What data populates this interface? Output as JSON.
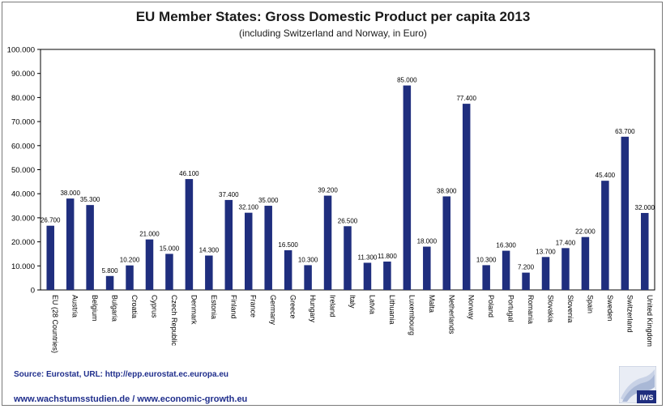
{
  "header": {
    "title": "EU Member States: Gross Domestic Product per capita 2013",
    "subtitle": "(including Switzerland and Norway, in Euro)"
  },
  "footer": {
    "source": "Source: Eurostat, URL: http://epp.eurostat.ec.europa.eu",
    "websites": "www.wachstumsstudien.de  / www.economic-growth.eu",
    "logo_text": "IWS"
  },
  "colors": {
    "bar": "#1f2e7e",
    "axis": "#000000",
    "text": "#1a1a1a",
    "footer_text": "#1f2e8c",
    "frame": "#7a7a7a"
  },
  "chart_data": {
    "type": "bar",
    "title": "EU Member States: Gross Domestic Product per capita 2013",
    "subtitle": "(including Switzerland and Norway, in Euro)",
    "categories": [
      "EU (28 Countries)",
      "Austria",
      "Belgium",
      "Bulgaria",
      "Croatia",
      "Cyprus",
      "Czech Republic",
      "Denmark",
      "Estonia",
      "Finland",
      "France",
      "Germany",
      "Greece",
      "Hungary",
      "Ireland",
      "Italy",
      "Latvia",
      "Lithuania",
      "Luxembourg",
      "Malta",
      "Netherlands",
      "Norway",
      "Poland",
      "Portugal",
      "Romania",
      "Slovakia",
      "Slovenia",
      "Spain",
      "Sweden",
      "Switzerland",
      "United Kingdom"
    ],
    "values": [
      26700,
      38000,
      35300,
      5800,
      10200,
      21000,
      15000,
      46100,
      14300,
      37400,
      32100,
      35000,
      16500,
      10300,
      39200,
      26500,
      11300,
      11800,
      85000,
      18000,
      38900,
      77400,
      10300,
      16300,
      7200,
      13700,
      17400,
      22000,
      45400,
      63700,
      32000
    ],
    "value_labels": [
      "26.700",
      "38.000",
      "35.300",
      "5.800",
      "10.200",
      "21.000",
      "15.000",
      "46.100",
      "14.300",
      "37.400",
      "32.100",
      "35.000",
      "16.500",
      "10.300",
      "39.200",
      "26.500",
      "11.300",
      "11.800",
      "85.000",
      "18.000",
      "38.900",
      "77.400",
      "10.300",
      "16.300",
      "7.200",
      "13.700",
      "17.400",
      "22.000",
      "45.400",
      "63.700",
      "32.000"
    ],
    "yticks": [
      "0",
      "10.000",
      "20.000",
      "30.000",
      "40.000",
      "50.000",
      "60.000",
      "70.000",
      "80.000",
      "90.000",
      "100.000"
    ],
    "ylim": [
      0,
      100000
    ],
    "grid": false,
    "legend": "none"
  }
}
